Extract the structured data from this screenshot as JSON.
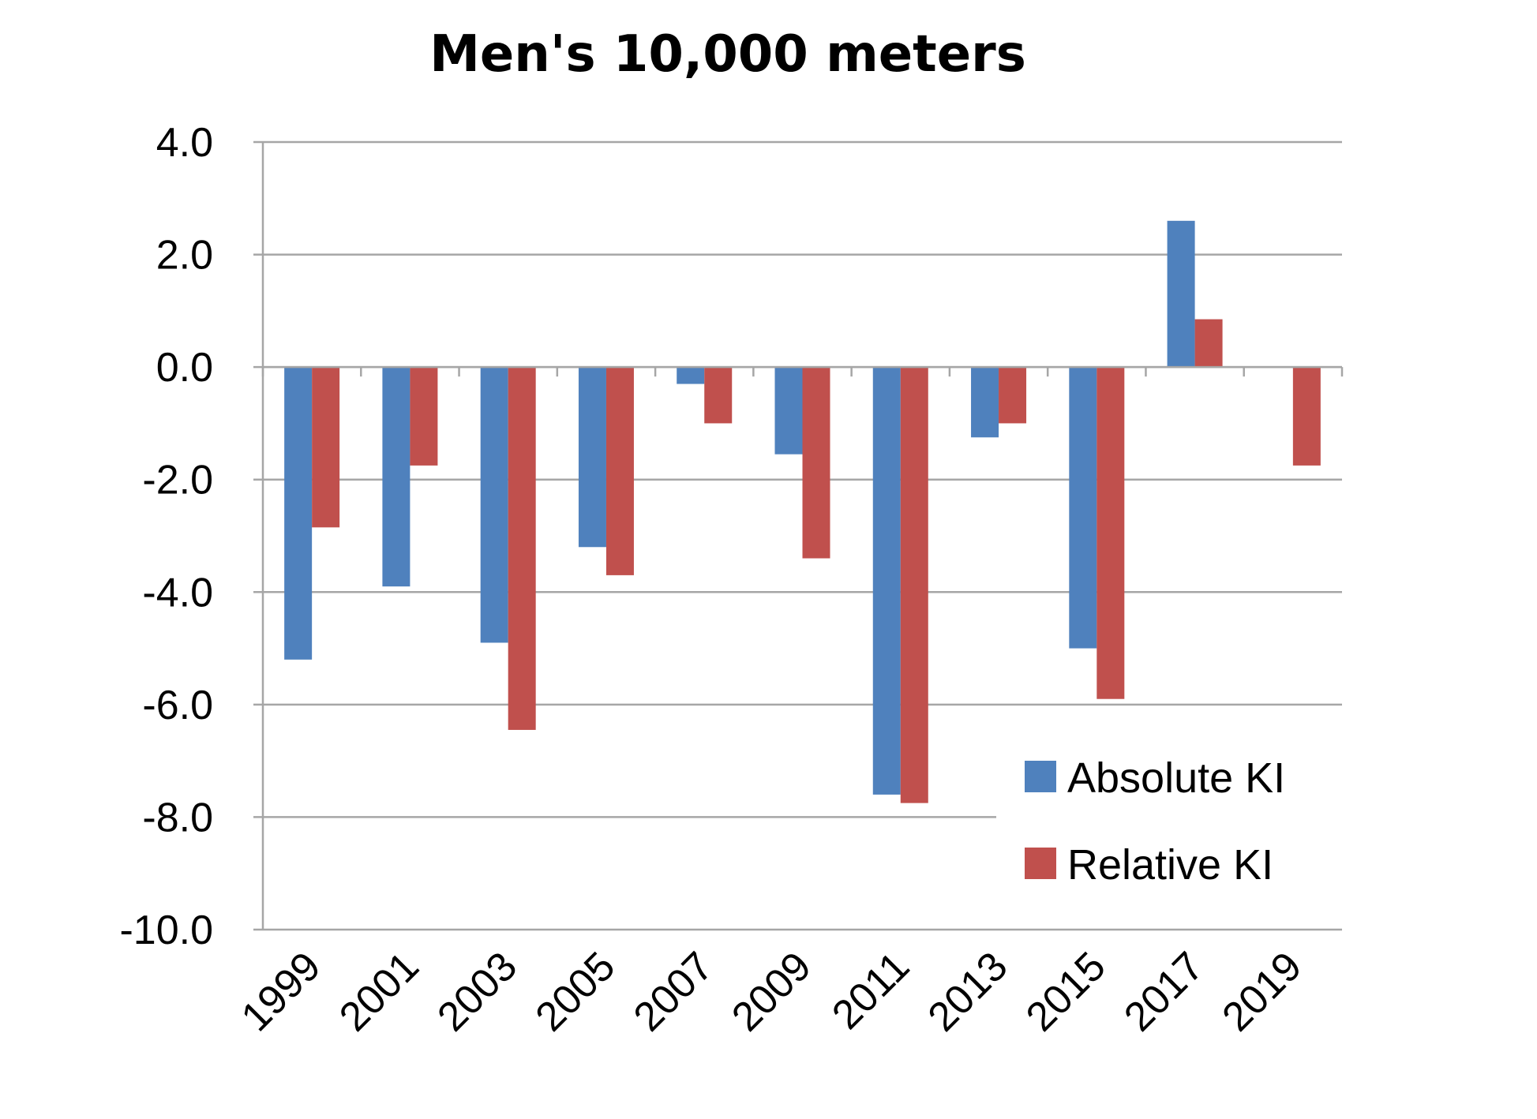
{
  "chart_data": {
    "type": "bar",
    "title": "Men's 10,000 meters",
    "xlabel": "",
    "ylabel": "",
    "categories": [
      "1999",
      "2001",
      "2003",
      "2005",
      "2007",
      "2009",
      "2011",
      "2013",
      "2015",
      "2017",
      "2019"
    ],
    "series": [
      {
        "name": "Absolute KI",
        "color": "#4f81bd",
        "values": [
          -5.2,
          -3.9,
          -4.9,
          -3.2,
          -0.3,
          -1.55,
          -7.6,
          -1.25,
          -5.0,
          2.6,
          0
        ]
      },
      {
        "name": "Relative KI",
        "color": "#c0504d",
        "values": [
          -2.85,
          -1.75,
          -6.45,
          -3.7,
          -1.0,
          -3.4,
          -7.75,
          -1.0,
          -5.9,
          0.85,
          -1.75
        ]
      }
    ],
    "ylim": [
      -10,
      4
    ],
    "yticks": [
      "4.0",
      "2.0",
      "0.0",
      "-2.0",
      "-4.0",
      "-6.0",
      "-8.0",
      "-10.0"
    ],
    "ytick_values": [
      4,
      2,
      0,
      -2,
      -4,
      -6,
      -8,
      -10
    ],
    "grid": true,
    "legend_position": "bottom-right"
  }
}
